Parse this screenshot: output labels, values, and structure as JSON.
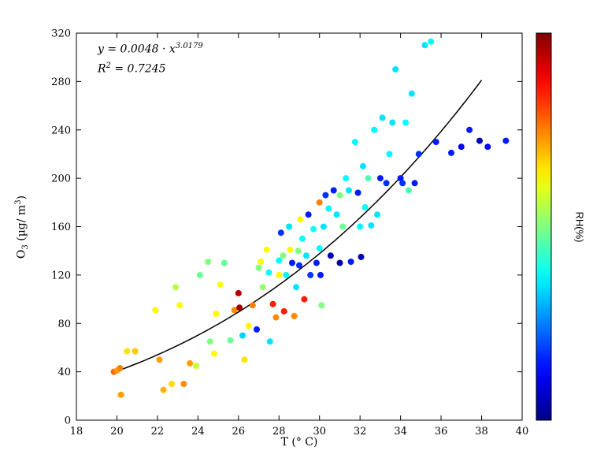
{
  "chart_data": {
    "type": "scatter",
    "title": "",
    "xlabel": "T (° C)",
    "ylabel": "O3 (µg/ m3)",
    "ylabel_parts": {
      "p1": "O",
      "s1": "3",
      "p2": " (µg/ m",
      "s2": "3",
      "p3": ")"
    },
    "xlim": [
      18,
      40
    ],
    "ylim": [
      0,
      320
    ],
    "x_ticks": [
      18,
      20,
      22,
      24,
      26,
      28,
      30,
      32,
      34,
      36,
      38,
      40
    ],
    "y_ticks": [
      0,
      40,
      80,
      120,
      160,
      200,
      240,
      280,
      320
    ],
    "grid": false,
    "colorbar": {
      "label": "RH(%)",
      "colormap": "jet",
      "position": "right"
    },
    "annotation": {
      "eq_prefix": "y = 0.0048 · x",
      "eq_exponent": "3.0179",
      "r2_base": "R",
      "r2_sup": "2",
      "r2_rest": " = 0.7245"
    },
    "fit": {
      "type": "power",
      "a": 0.0048,
      "b": 3.0179,
      "x_range": [
        19.8,
        38.0
      ]
    },
    "points_format": [
      "T_degC",
      "O3_ugm3",
      "colormap_fraction_0to1"
    ],
    "points": [
      [
        19.85,
        40,
        0.78
      ],
      [
        20.0,
        41,
        0.72
      ],
      [
        20.15,
        43,
        0.75
      ],
      [
        20.2,
        21,
        0.72
      ],
      [
        20.5,
        57,
        0.65
      ],
      [
        20.9,
        57,
        0.68
      ],
      [
        21.9,
        91,
        0.63
      ],
      [
        22.1,
        50,
        0.72
      ],
      [
        22.3,
        25,
        0.7
      ],
      [
        22.7,
        30,
        0.66
      ],
      [
        22.9,
        110,
        0.55
      ],
      [
        23.1,
        95,
        0.63
      ],
      [
        23.3,
        30,
        0.74
      ],
      [
        23.6,
        47,
        0.72
      ],
      [
        23.9,
        45,
        0.57
      ],
      [
        24.1,
        120,
        0.48
      ],
      [
        24.5,
        131,
        0.5
      ],
      [
        24.6,
        65,
        0.5
      ],
      [
        24.8,
        55,
        0.63
      ],
      [
        24.9,
        88,
        0.63
      ],
      [
        25.1,
        112,
        0.62
      ],
      [
        25.3,
        130,
        0.47
      ],
      [
        25.6,
        66,
        0.48
      ],
      [
        25.8,
        91,
        0.74
      ],
      [
        26.0,
        105,
        0.95
      ],
      [
        26.05,
        93,
        0.97
      ],
      [
        26.2,
        70,
        0.33
      ],
      [
        26.3,
        50,
        0.65
      ],
      [
        26.5,
        78,
        0.63
      ],
      [
        26.7,
        95,
        0.75
      ],
      [
        26.9,
        75,
        0.15
      ],
      [
        27.0,
        126,
        0.5
      ],
      [
        27.1,
        131,
        0.63
      ],
      [
        27.2,
        110,
        0.52
      ],
      [
        27.4,
        141,
        0.63
      ],
      [
        27.5,
        122,
        0.38
      ],
      [
        27.55,
        65,
        0.35
      ],
      [
        27.7,
        96,
        0.85
      ],
      [
        27.85,
        85,
        0.74
      ],
      [
        28.0,
        132,
        0.38
      ],
      [
        28.0,
        120,
        0.63
      ],
      [
        28.1,
        155,
        0.17
      ],
      [
        28.2,
        136,
        0.5
      ],
      [
        28.25,
        90,
        0.85
      ],
      [
        28.35,
        120,
        0.37
      ],
      [
        28.5,
        160,
        0.35
      ],
      [
        28.55,
        141,
        0.63
      ],
      [
        28.65,
        130,
        0.15
      ],
      [
        28.75,
        86,
        0.74
      ],
      [
        28.85,
        110,
        0.35
      ],
      [
        28.95,
        140,
        0.5
      ],
      [
        29.0,
        128,
        0.17
      ],
      [
        29.05,
        166,
        0.63
      ],
      [
        29.15,
        150,
        0.38
      ],
      [
        29.25,
        100,
        0.85
      ],
      [
        29.35,
        136,
        0.35
      ],
      [
        29.45,
        170,
        0.15
      ],
      [
        29.55,
        120,
        0.18
      ],
      [
        29.7,
        158,
        0.38
      ],
      [
        29.85,
        130,
        0.15
      ],
      [
        30.0,
        180,
        0.75
      ],
      [
        30.0,
        142,
        0.37
      ],
      [
        30.05,
        120,
        0.15
      ],
      [
        30.1,
        95,
        0.5
      ],
      [
        30.2,
        160,
        0.35
      ],
      [
        30.3,
        186,
        0.17
      ],
      [
        30.45,
        175,
        0.37
      ],
      [
        30.55,
        136,
        0.05
      ],
      [
        30.7,
        190,
        0.15
      ],
      [
        30.85,
        170,
        0.35
      ],
      [
        31.0,
        130,
        0.04
      ],
      [
        31.0,
        186,
        0.5
      ],
      [
        31.15,
        160,
        0.48
      ],
      [
        31.3,
        200,
        0.38
      ],
      [
        31.45,
        190,
        0.35
      ],
      [
        31.55,
        131,
        0.15
      ],
      [
        31.75,
        230,
        0.37
      ],
      [
        31.9,
        188,
        0.15
      ],
      [
        32.0,
        160,
        0.37
      ],
      [
        32.05,
        135,
        0.05
      ],
      [
        32.15,
        210,
        0.35
      ],
      [
        32.25,
        176,
        0.38
      ],
      [
        32.4,
        200,
        0.45
      ],
      [
        32.55,
        161,
        0.35
      ],
      [
        32.7,
        240,
        0.37
      ],
      [
        32.85,
        170,
        0.35
      ],
      [
        33.0,
        200,
        0.15
      ],
      [
        33.1,
        250,
        0.35
      ],
      [
        33.3,
        196,
        0.17
      ],
      [
        33.45,
        220,
        0.37
      ],
      [
        33.6,
        246,
        0.35
      ],
      [
        33.75,
        290,
        0.35
      ],
      [
        34.0,
        200,
        0.15
      ],
      [
        34.1,
        196,
        0.17
      ],
      [
        34.25,
        246,
        0.38
      ],
      [
        34.4,
        190,
        0.45
      ],
      [
        34.55,
        270,
        0.35
      ],
      [
        34.7,
        196,
        0.15
      ],
      [
        34.9,
        220,
        0.17
      ],
      [
        35.2,
        310,
        0.35
      ],
      [
        35.5,
        313,
        0.37
      ],
      [
        35.75,
        230,
        0.15
      ],
      [
        36.5,
        221,
        0.15
      ],
      [
        37.0,
        226,
        0.12
      ],
      [
        37.4,
        240,
        0.15
      ],
      [
        37.9,
        231,
        0.05
      ],
      [
        38.3,
        226,
        0.12
      ],
      [
        39.2,
        231,
        0.15
      ]
    ]
  }
}
